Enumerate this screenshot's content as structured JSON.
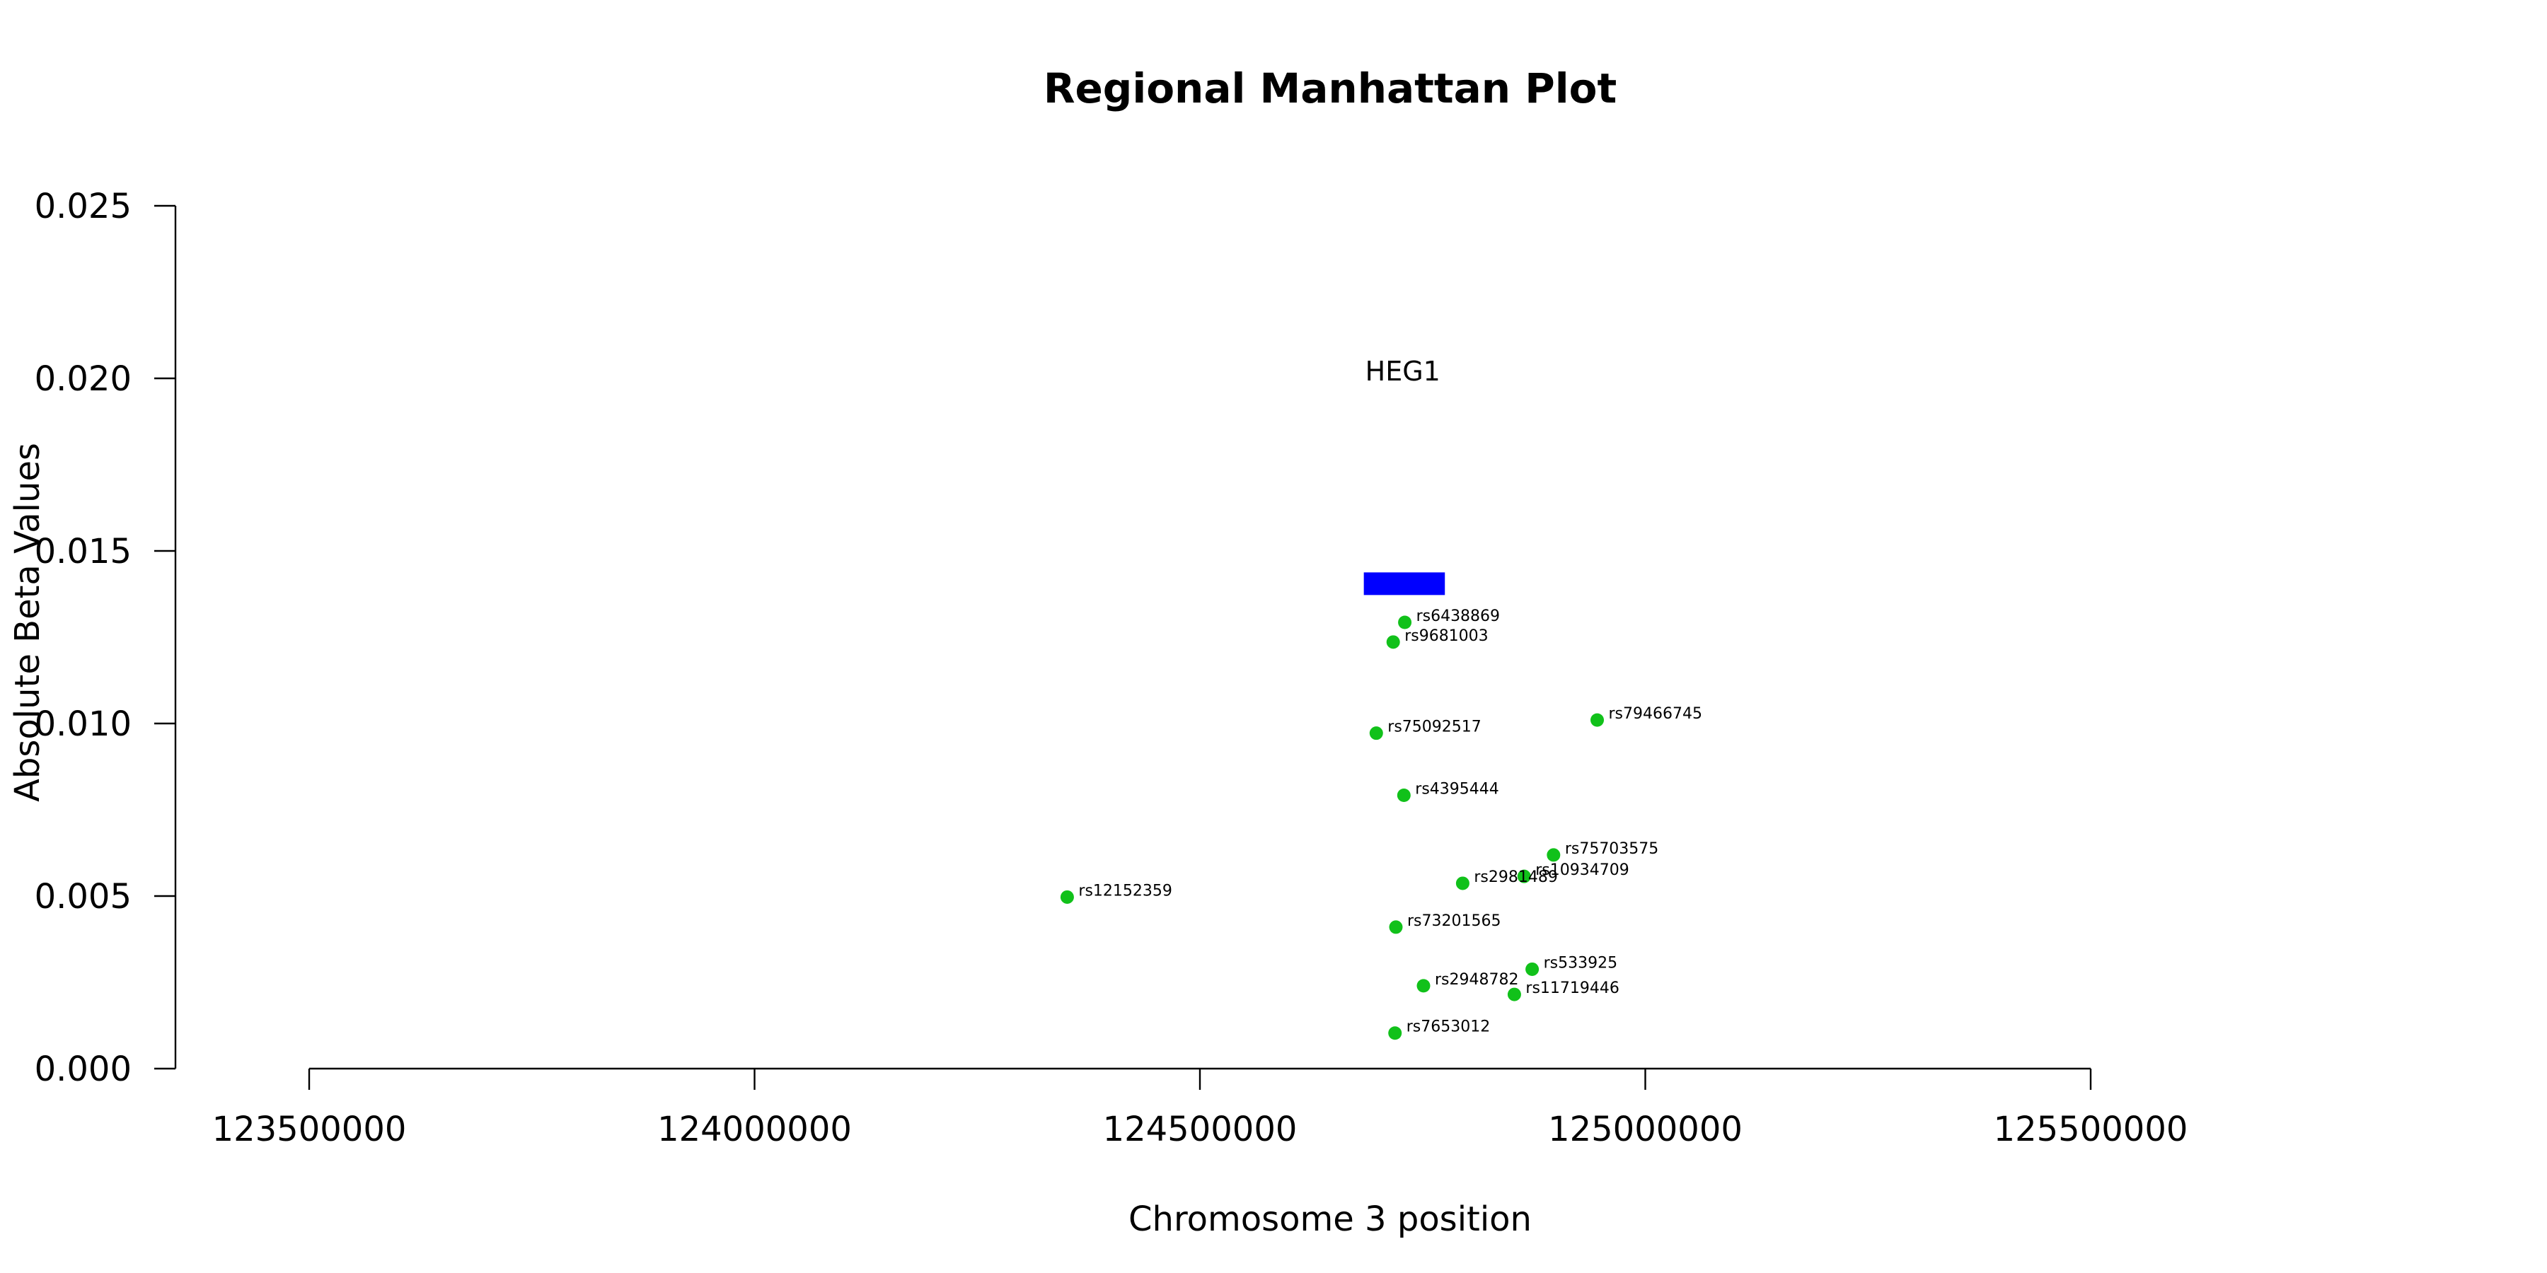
{
  "chart_data": {
    "type": "scatter",
    "title": "Regional Manhattan Plot",
    "xlabel": "Chromosome 3 position",
    "ylabel": "Absolute Beta Values",
    "xlim": [
      123500000,
      125500000
    ],
    "ylim": [
      0,
      0.025
    ],
    "x_ticks": [
      "123500000",
      "124000000",
      "124500000",
      "125000000",
      "125500000"
    ],
    "y_ticks": [
      "0.000",
      "0.005",
      "0.010",
      "0.015",
      "0.020",
      "0.025"
    ],
    "grid": false,
    "point_color": "#11c11a",
    "points": [
      {
        "label": "rs6438869",
        "x": 124730000,
        "y": 0.01293
      },
      {
        "label": "rs9681003",
        "x": 124717000,
        "y": 0.01236
      },
      {
        "label": "rs75092517",
        "x": 124698000,
        "y": 0.00972
      },
      {
        "label": "rs79466745",
        "x": 124946000,
        "y": 0.0101
      },
      {
        "label": "rs4395444",
        "x": 124729000,
        "y": 0.00792
      },
      {
        "label": "rs75703575",
        "x": 124897000,
        "y": 0.00619
      },
      {
        "label": "rs10934709",
        "x": 124864000,
        "y": 0.00557
      },
      {
        "label": "rs2981489",
        "x": 124795000,
        "y": 0.00537
      },
      {
        "label": "rs12152359",
        "x": 124351000,
        "y": 0.00497
      },
      {
        "label": "rs73201565",
        "x": 124720000,
        "y": 0.0041
      },
      {
        "label": "rs533925",
        "x": 124873000,
        "y": 0.00288
      },
      {
        "label": "rs2948782",
        "x": 124751000,
        "y": 0.0024
      },
      {
        "label": "rs11719446",
        "x": 124853000,
        "y": 0.00215
      },
      {
        "label": "rs7653012",
        "x": 124719000,
        "y": 0.00103
      }
    ],
    "genes": [
      {
        "name": "HEG1",
        "start": 124684000,
        "end": 124775000,
        "y": 0.01405,
        "color": "#0000ff",
        "label_y": 0.0202
      }
    ]
  }
}
